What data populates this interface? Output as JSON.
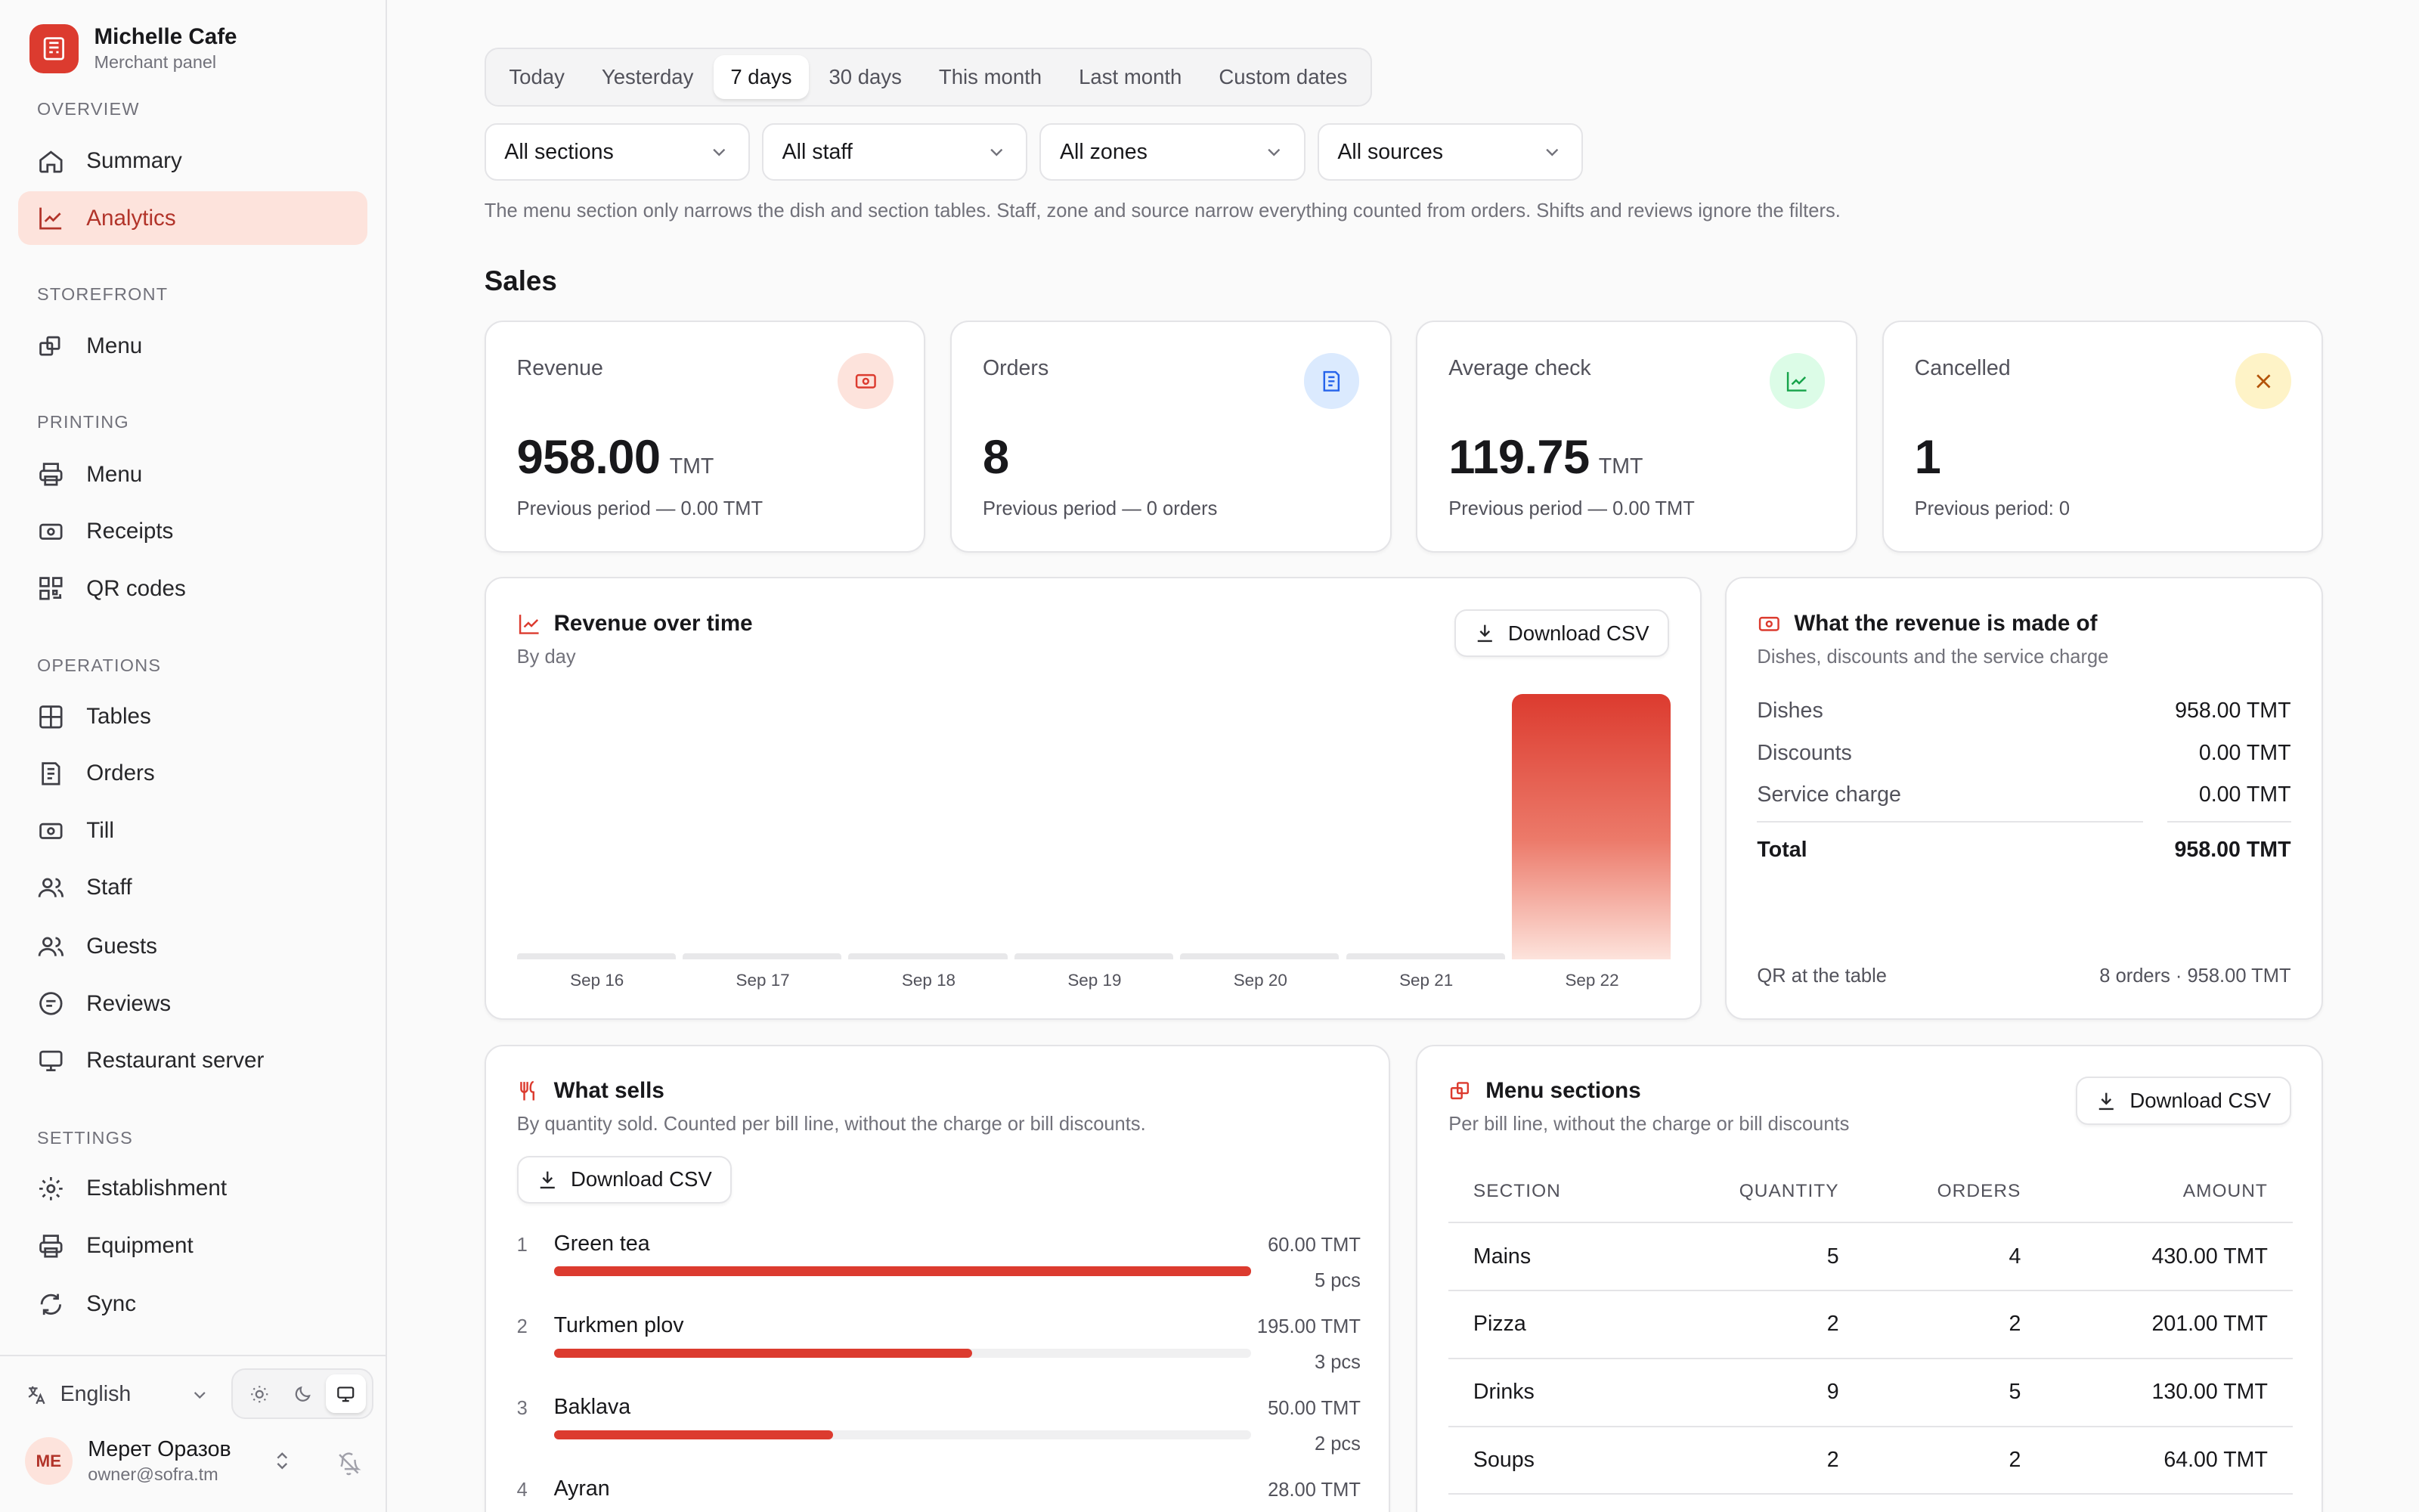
{
  "brand": {
    "name": "Michelle Cafe",
    "subtitle": "Merchant panel"
  },
  "sidebar": {
    "groups": {
      "overview": "OVERVIEW",
      "storefront": "STOREFRONT",
      "printing": "PRINTING",
      "operations": "OPERATIONS",
      "settings": "SETTINGS"
    },
    "items": {
      "summary": "Summary",
      "analytics": "Analytics",
      "menu": "Menu",
      "print_menu": "Menu",
      "receipts": "Receipts",
      "qr_codes": "QR codes",
      "tables": "Tables",
      "orders": "Orders",
      "till": "Till",
      "staff": "Staff",
      "guests": "Guests",
      "reviews": "Reviews",
      "restaurant_server": "Restaurant server",
      "establishment": "Establishment",
      "equipment": "Equipment",
      "sync": "Sync"
    },
    "active": "analytics"
  },
  "footer": {
    "language": "English",
    "theme_selected": "system",
    "user_initials": "ME",
    "user_name": "Мерет Оразов",
    "user_email": "owner@sofra.tm"
  },
  "period_tabs": [
    "Today",
    "Yesterday",
    "7 days",
    "30 days",
    "This month",
    "Last month",
    "Custom dates"
  ],
  "period_selected": "7 days",
  "filters": {
    "section": "All sections",
    "staff": "All staff",
    "zone": "All zones",
    "source": "All sources"
  },
  "filter_note": "The menu section only narrows the dish and section tables. Staff, zone and source narrow everything counted from orders. Shifts and reviews ignore the filters.",
  "sales_heading": "Sales",
  "kpis": [
    {
      "label": "Revenue",
      "value": "958.00",
      "unit": "TMT",
      "previous": "Previous period — 0.00 TMT",
      "icon": "banknote-icon",
      "color": "#fde3dc"
    },
    {
      "label": "Orders",
      "value": "8",
      "unit": "",
      "previous": "Previous period — 0 orders",
      "icon": "receipt-icon",
      "color": "#dbeafe"
    },
    {
      "label": "Average check",
      "value": "119.75",
      "unit": "TMT",
      "previous": "Previous period — 0.00 TMT",
      "icon": "trending-up-icon",
      "color": "#dcfce7"
    },
    {
      "label": "Cancelled",
      "value": "1",
      "unit": "",
      "previous": "Previous period: 0",
      "icon": "x-icon",
      "color": "#fef3c7"
    }
  ],
  "revenue_chart": {
    "title": "Revenue over time",
    "subtitle": "By day",
    "download_label": "Download CSV"
  },
  "chart_data": {
    "type": "bar",
    "categories": [
      "Sep 16",
      "Sep 17",
      "Sep 18",
      "Sep 19",
      "Sep 20",
      "Sep 21",
      "Sep 22"
    ],
    "values": [
      0,
      0,
      0,
      0,
      0,
      0,
      958
    ],
    "title": "Revenue over time",
    "subtitle": "By day",
    "xlabel": "",
    "ylabel": "",
    "grid": false
  },
  "breakdown": {
    "title": "What the revenue is made of",
    "subtitle": "Dishes, discounts and the service charge",
    "rows": [
      {
        "label": "Dishes",
        "value": "958.00 TMT"
      },
      {
        "label": "Discounts",
        "value": "0.00 TMT"
      },
      {
        "label": "Service charge",
        "value": "0.00 TMT"
      }
    ],
    "total_label": "Total",
    "total_value": "958.00 TMT",
    "source_label": "QR at the table",
    "source_value": "8 orders · 958.00 TMT"
  },
  "what_sells": {
    "title": "What sells",
    "subtitle": "By quantity sold. Counted per bill line, without the charge or bill discounts.",
    "download_label": "Download CSV",
    "items": [
      {
        "rank": "1",
        "name": "Green tea",
        "amount": "60.00 TMT",
        "qty": "5 pcs",
        "share": 1.0
      },
      {
        "rank": "2",
        "name": "Turkmen plov",
        "amount": "195.00 TMT",
        "qty": "3 pcs",
        "share": 0.6
      },
      {
        "rank": "3",
        "name": "Baklava",
        "amount": "50.00 TMT",
        "qty": "2 pcs",
        "share": 0.4
      },
      {
        "rank": "4",
        "name": "Ayran",
        "amount": "28.00 TMT",
        "qty": "",
        "share": 0.4
      }
    ]
  },
  "menu_sections": {
    "title": "Menu sections",
    "subtitle": "Per bill line, without the charge or bill discounts",
    "download_label": "Download CSV",
    "headers": [
      "SECTION",
      "QUANTITY",
      "ORDERS",
      "AMOUNT"
    ],
    "rows": [
      [
        "Mains",
        "5",
        "4",
        "430.00 TMT"
      ],
      [
        "Pizza",
        "2",
        "2",
        "201.00 TMT"
      ],
      [
        "Drinks",
        "9",
        "5",
        "130.00 TMT"
      ],
      [
        "Soups",
        "2",
        "2",
        "64.00 TMT"
      ]
    ]
  }
}
